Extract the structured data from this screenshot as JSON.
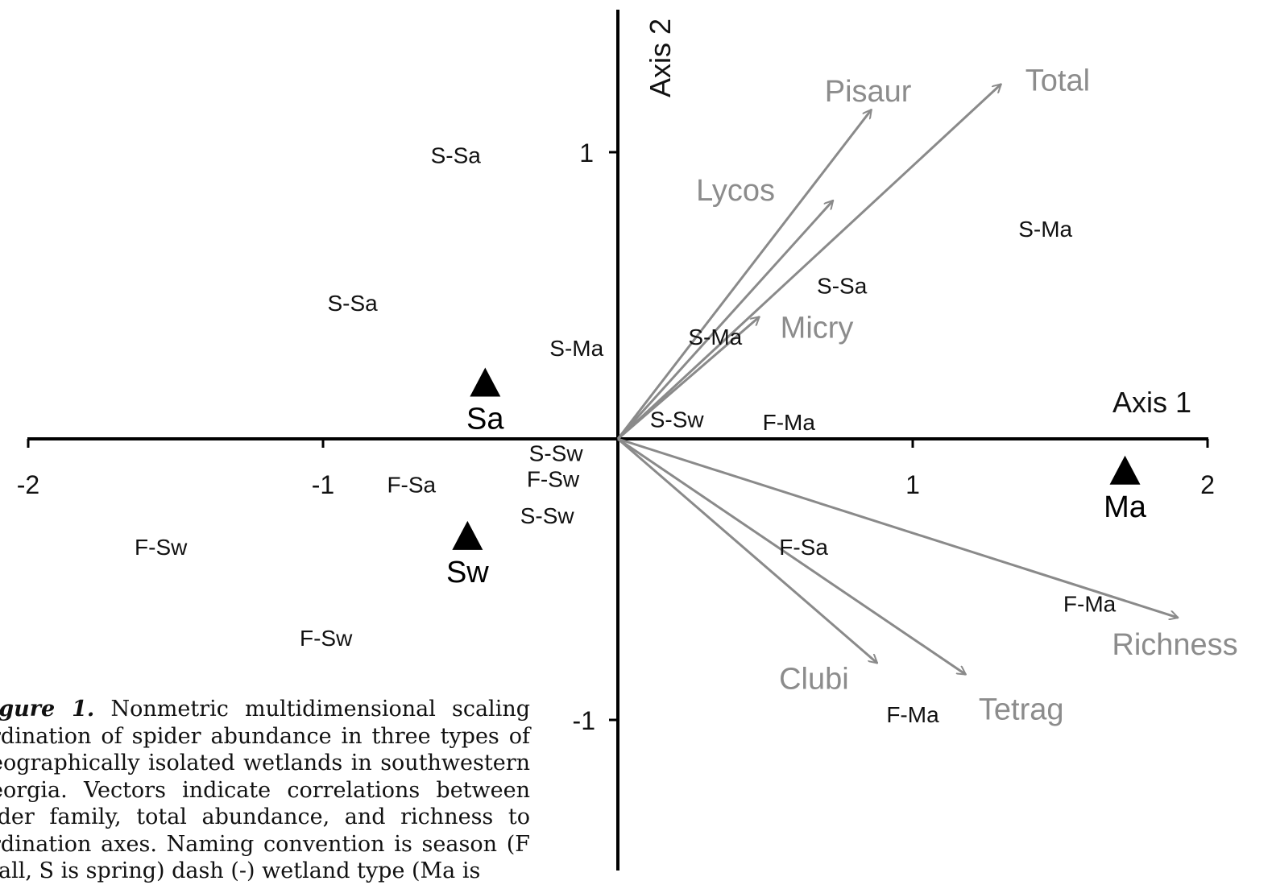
{
  "chart_data": {
    "type": "scatter",
    "xlabel": "Axis 1",
    "ylabel": "Axis 2",
    "x_ticks": [
      "-2",
      "-1",
      "1",
      "2"
    ],
    "y_ticks": [
      "1",
      "-1"
    ],
    "xlim": [
      -2,
      2
    ],
    "ylim": [
      -1.5,
      1.5
    ],
    "colors": {
      "axis": "#000000",
      "vector": "#8a8a8a",
      "vector_label": "#8c8c8c",
      "site_label": "#111111",
      "centroid": "#000000"
    },
    "sites": [
      {
        "label": "S-Sa",
        "x": -0.55,
        "y": 1.0
      },
      {
        "label": "S-Sa",
        "x": -0.9,
        "y": 0.48
      },
      {
        "label": "S-Ma",
        "x": -0.14,
        "y": 0.32
      },
      {
        "label": "S-Sw",
        "x": -0.21,
        "y": -0.05
      },
      {
        "label": "F-Sw",
        "x": -0.22,
        "y": -0.14
      },
      {
        "label": "F-Sa",
        "x": -0.7,
        "y": -0.16
      },
      {
        "label": "S-Sw",
        "x": -0.24,
        "y": -0.27
      },
      {
        "label": "F-Sw",
        "x": -1.55,
        "y": -0.38
      },
      {
        "label": "F-Sw",
        "x": -0.99,
        "y": -0.7
      },
      {
        "label": "S-Ma",
        "x": 1.45,
        "y": 0.74
      },
      {
        "label": "S-Sa",
        "x": 0.76,
        "y": 0.54
      },
      {
        "label": "S-Ma",
        "x": 0.33,
        "y": 0.36
      },
      {
        "label": "S-Sw",
        "x": 0.2,
        "y": 0.07
      },
      {
        "label": "F-Ma",
        "x": 0.58,
        "y": 0.06
      },
      {
        "label": "F-Sa",
        "x": 0.63,
        "y": -0.38
      },
      {
        "label": "F-Ma",
        "x": 1.6,
        "y": -0.58
      },
      {
        "label": "F-Ma",
        "x": 1.0,
        "y": -0.97
      }
    ],
    "centroids": [
      {
        "label": "Sa",
        "x": -0.45,
        "y": 0.2
      },
      {
        "label": "Sw",
        "x": -0.51,
        "y": -0.34
      },
      {
        "label": "Ma",
        "x": 1.72,
        "y": -0.11
      }
    ],
    "vectors": [
      {
        "label": "Pisaur",
        "x": 0.86,
        "y": 1.16
      },
      {
        "label": "Total",
        "x": 1.3,
        "y": 1.25
      },
      {
        "label": "Lycos",
        "x": 0.73,
        "y": 0.84
      },
      {
        "label": "Micry",
        "x": 0.48,
        "y": 0.43
      },
      {
        "label": "Richness",
        "x": 1.9,
        "y": -0.63
      },
      {
        "label": "Clubi",
        "x": 0.88,
        "y": -0.79
      },
      {
        "label": "Tetrag",
        "x": 1.18,
        "y": -0.83
      }
    ]
  },
  "caption": {
    "lead": "igure 1.",
    "text": " Nonmetric multidimensional scaling rdination of spider abundance in three types of eographically isolated wetlands in southwestern eorgia. Vectors indicate correlations between ider family, total abundance, and richness to rdination axes. Naming convention is season (F fall, S is spring) dash (-) wetland type (Ma is"
  }
}
